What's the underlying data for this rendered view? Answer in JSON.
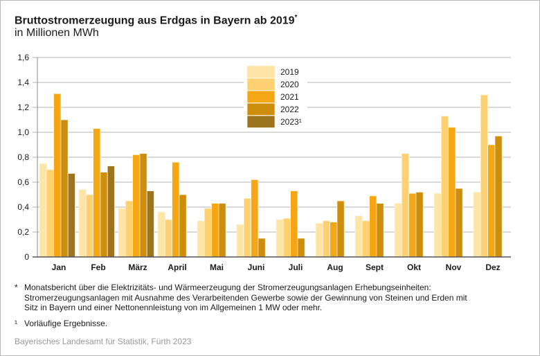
{
  "chart_data": {
    "type": "bar",
    "title": "Bruttostromerzeugung aus Erdgas in Bayern ab 2019",
    "title_marker": "*",
    "subtitle": "in Millionen MWh",
    "categories": [
      "Jan",
      "Feb",
      "März",
      "April",
      "Mai",
      "Juni",
      "Juli",
      "Aug",
      "Sept",
      "Okt",
      "Nov",
      "Dez"
    ],
    "series": [
      {
        "name": "2019",
        "color": "#fde5a8",
        "values": [
          0.75,
          0.54,
          0.39,
          0.36,
          0.29,
          0.26,
          0.3,
          0.27,
          0.33,
          0.43,
          0.51,
          0.52
        ]
      },
      {
        "name": "2020",
        "color": "#fdd072",
        "values": [
          0.7,
          0.5,
          0.45,
          0.3,
          0.39,
          0.47,
          0.31,
          0.29,
          0.29,
          0.83,
          1.13,
          1.3
        ]
      },
      {
        "name": "2021",
        "color": "#f5a615",
        "values": [
          1.31,
          1.03,
          0.82,
          0.76,
          0.43,
          0.62,
          0.53,
          0.28,
          0.49,
          0.51,
          1.04,
          0.9
        ]
      },
      {
        "name": "2022",
        "color": "#cd8e0e",
        "values": [
          1.1,
          0.68,
          0.83,
          0.5,
          0.43,
          0.15,
          0.15,
          0.45,
          0.43,
          0.52,
          0.55,
          0.97
        ]
      },
      {
        "name": "2023¹",
        "color": "#9c741e",
        "values": [
          0.67,
          0.73,
          0.53,
          null,
          null,
          null,
          null,
          null,
          null,
          null,
          null,
          null
        ]
      }
    ],
    "yticks": [
      "0",
      "0,2",
      "0,4",
      "0,6",
      "0,8",
      "1,0",
      "1,2",
      "1,4",
      "1,6"
    ],
    "ylim": [
      0,
      1.6
    ],
    "grid": true,
    "legend_position": "top-center"
  },
  "footnotes": [
    {
      "marker": "*",
      "text": "Monatsbericht über die Elektrizitäts- und Wärmeerzeugung der Stromerzeugungsanlagen Erhebungseinheiten: Stromerzeugungsanlagen mit Ausnahme des Verarbeitenden Gewerbe sowie der Gewinnung von Steinen und Erden mit Sitz in Bayern und einer Nettonennleistung von im Allgemeinen 1 MW oder mehr."
    },
    {
      "marker": "¹",
      "text": "Vorläufige Ergebnisse."
    }
  ],
  "source": "Bayerisches Landesamt für Statistik, Fürth 2023"
}
